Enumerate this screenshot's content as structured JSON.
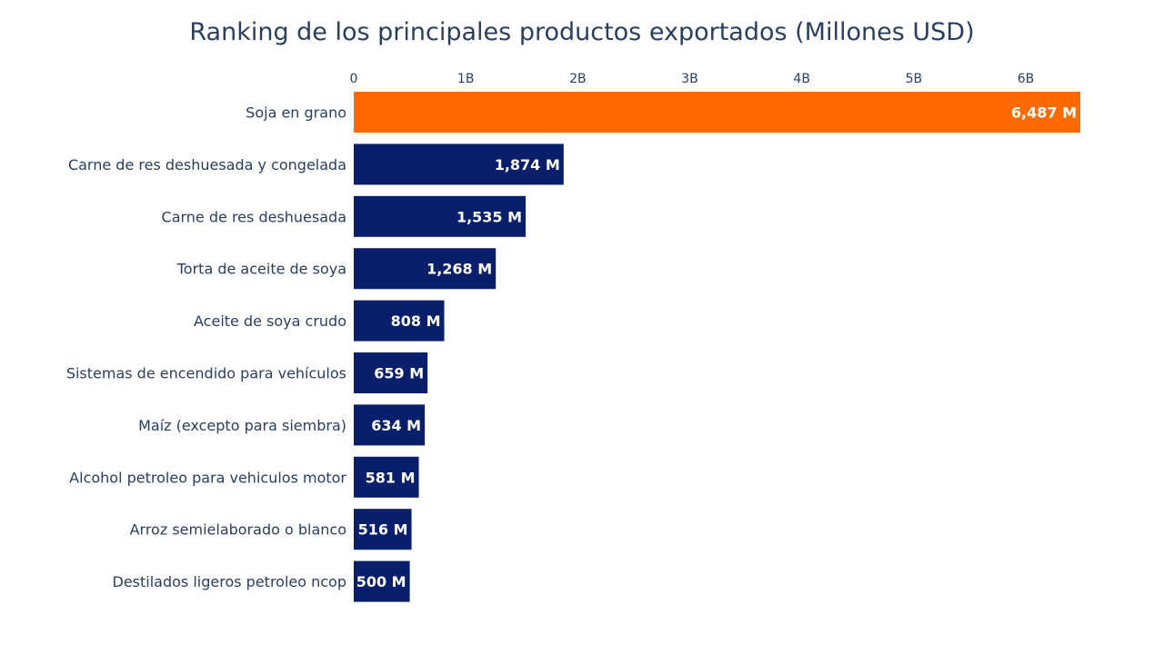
{
  "chart_data": {
    "type": "bar",
    "orientation": "horizontal",
    "title": "Ranking de los principales productos exportados (Millones USD)",
    "xlabel": "",
    "ylabel": "",
    "xaxis_side": "top",
    "xlim": [
      0,
      6487
    ],
    "xticks": [
      0,
      1000,
      2000,
      3000,
      4000,
      5000,
      6000
    ],
    "xtick_labels": [
      "0",
      "1B",
      "2B",
      "3B",
      "4B",
      "5B",
      "6B"
    ],
    "grid": false,
    "categories": [
      "Soja en grano",
      "Carne de res deshuesada y congelada",
      "Carne de res deshuesada",
      "Torta de aceite de soya",
      "Aceite de soya crudo",
      "Sistemas de encendido para vehículos",
      "Maíz (excepto para siembra)",
      "Alcohol petroleo para vehiculos motor",
      "Arroz semielaborado o blanco",
      "Destilados ligeros petroleo ncop"
    ],
    "values": [
      6487,
      1874,
      1535,
      1268,
      808,
      659,
      634,
      581,
      516,
      500
    ],
    "data_labels": [
      "6,487 M",
      "1,874 M",
      "1,535 M",
      "1,268 M",
      "808 M",
      "659 M",
      "634 M",
      "581 M",
      "516 M",
      "500 M"
    ],
    "highlight_index": 0,
    "colors": {
      "highlight": "#ff6a00",
      "default": "#0a1f6b",
      "label_inside": "#ffffff",
      "label_outside": "#000000",
      "text": "#2a3f5f"
    }
  }
}
